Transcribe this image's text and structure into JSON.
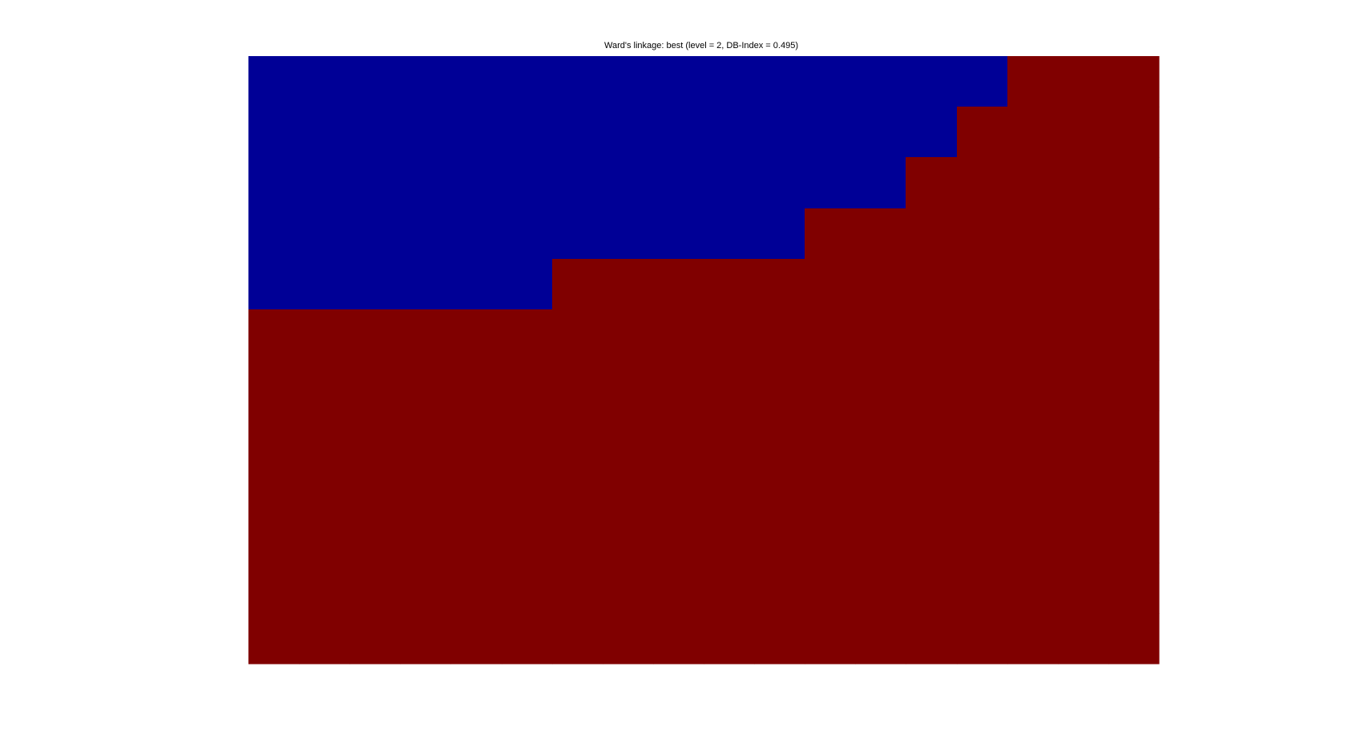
{
  "chart_data": {
    "type": "heatmap",
    "title": "Ward's linkage: best (level = 2, DB-Index = 0.495)",
    "xlabel": "",
    "ylabel": "",
    "grid": false,
    "n_cols": 18,
    "n_rows": 12,
    "colors": {
      "1": "#000096",
      "2": "#800000"
    },
    "cells": [
      [
        1,
        1,
        1,
        1,
        1,
        1,
        1,
        1,
        1,
        1,
        1,
        1,
        1,
        1,
        1,
        2,
        2,
        2
      ],
      [
        1,
        1,
        1,
        1,
        1,
        1,
        1,
        1,
        1,
        1,
        1,
        1,
        1,
        1,
        2,
        2,
        2,
        2
      ],
      [
        1,
        1,
        1,
        1,
        1,
        1,
        1,
        1,
        1,
        1,
        1,
        1,
        1,
        2,
        2,
        2,
        2,
        2
      ],
      [
        1,
        1,
        1,
        1,
        1,
        1,
        1,
        1,
        1,
        1,
        1,
        2,
        2,
        2,
        2,
        2,
        2,
        2
      ],
      [
        1,
        1,
        1,
        1,
        1,
        1,
        2,
        2,
        2,
        2,
        2,
        2,
        2,
        2,
        2,
        2,
        2,
        2
      ],
      [
        2,
        2,
        2,
        2,
        2,
        2,
        2,
        2,
        2,
        2,
        2,
        2,
        2,
        2,
        2,
        2,
        2,
        2
      ],
      [
        2,
        2,
        2,
        2,
        2,
        2,
        2,
        2,
        2,
        2,
        2,
        2,
        2,
        2,
        2,
        2,
        2,
        2
      ],
      [
        2,
        2,
        2,
        2,
        2,
        2,
        2,
        2,
        2,
        2,
        2,
        2,
        2,
        2,
        2,
        2,
        2,
        2
      ],
      [
        2,
        2,
        2,
        2,
        2,
        2,
        2,
        2,
        2,
        2,
        2,
        2,
        2,
        2,
        2,
        2,
        2,
        2
      ],
      [
        2,
        2,
        2,
        2,
        2,
        2,
        2,
        2,
        2,
        2,
        2,
        2,
        2,
        2,
        2,
        2,
        2,
        2
      ],
      [
        2,
        2,
        2,
        2,
        2,
        2,
        2,
        2,
        2,
        2,
        2,
        2,
        2,
        2,
        2,
        2,
        2,
        2
      ],
      [
        2,
        2,
        2,
        2,
        2,
        2,
        2,
        2,
        2,
        2,
        2,
        2,
        2,
        2,
        2,
        2,
        2,
        2
      ]
    ]
  }
}
